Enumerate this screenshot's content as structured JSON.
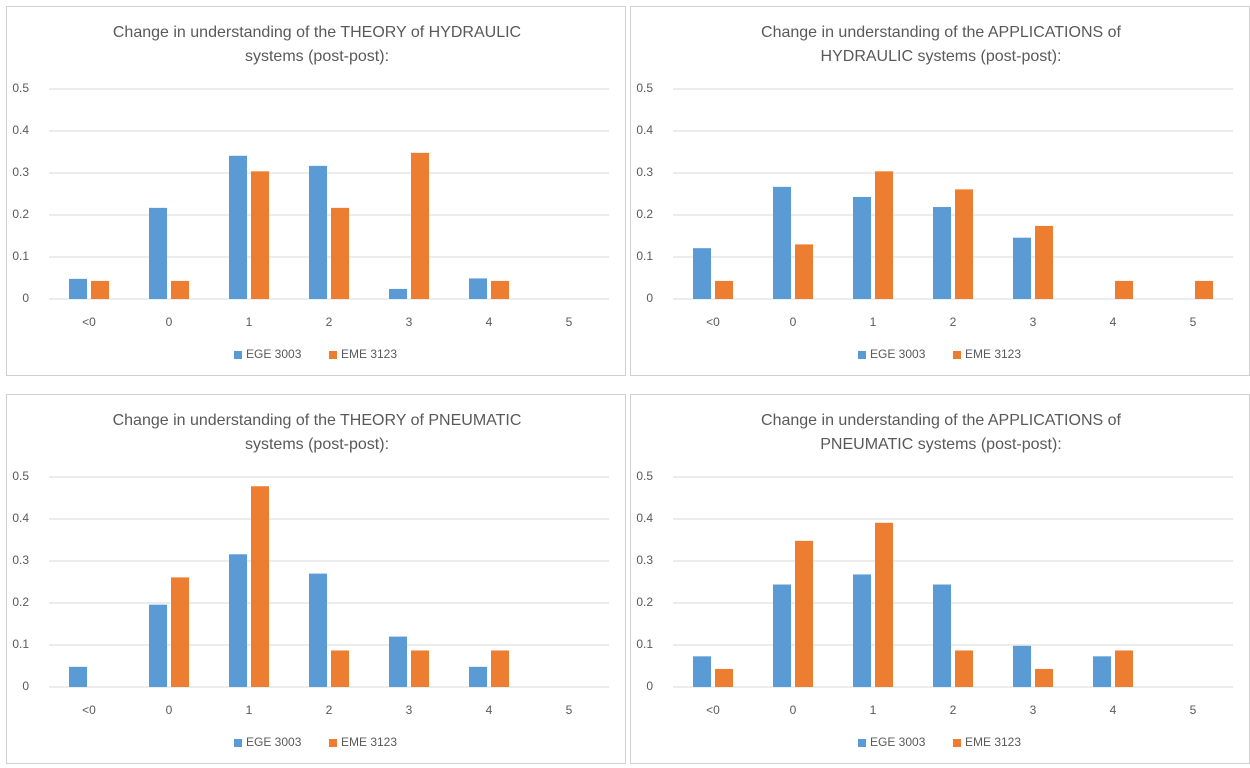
{
  "chart_data": [
    {
      "type": "bar",
      "title": "Change in understanding of the THEORY of HYDRAULIC systems (post-post):",
      "categories": [
        "<0",
        "0",
        "1",
        "2",
        "3",
        "4",
        "5"
      ],
      "series": [
        {
          "name": "EGE 3003",
          "color": "#5b9bd5",
          "values": [
            0.048,
            0.217,
            0.341,
            0.317,
            0.024,
            0.049,
            0
          ]
        },
        {
          "name": "EME 3123",
          "color": "#ed7d31",
          "values": [
            0.043,
            0.043,
            0.304,
            0.217,
            0.348,
            0.043,
            0
          ]
        }
      ],
      "ylim": [
        0,
        0.5
      ],
      "yticks": [
        0,
        0.1,
        0.2,
        0.3,
        0.4,
        0.5
      ],
      "grid": true
    },
    {
      "type": "bar",
      "title": "Change in understanding of the APPLICATIONS of HYDRAULIC systems (post-post):",
      "categories": [
        "<0",
        "0",
        "1",
        "2",
        "3",
        "4",
        "5"
      ],
      "series": [
        {
          "name": "EGE 3003",
          "color": "#5b9bd5",
          "values": [
            0.121,
            0.267,
            0.243,
            0.219,
            0.146,
            0,
            0
          ]
        },
        {
          "name": "EME 3123",
          "color": "#ed7d31",
          "values": [
            0.043,
            0.13,
            0.304,
            0.261,
            0.174,
            0.043,
            0.043
          ]
        }
      ],
      "ylim": [
        0,
        0.5
      ],
      "yticks": [
        0,
        0.1,
        0.2,
        0.3,
        0.4,
        0.5
      ],
      "grid": true
    },
    {
      "type": "bar",
      "title": "Change in understanding of the THEORY of PNEUMATIC systems (post-post):",
      "categories": [
        "<0",
        "0",
        "1",
        "2",
        "3",
        "4",
        "5"
      ],
      "series": [
        {
          "name": "EGE 3003",
          "color": "#5b9bd5",
          "values": [
            0.048,
            0.196,
            0.316,
            0.27,
            0.12,
            0.048,
            0
          ]
        },
        {
          "name": "EME 3123",
          "color": "#ed7d31",
          "values": [
            0,
            0.261,
            0.478,
            0.087,
            0.087,
            0.087,
            0
          ]
        }
      ],
      "ylim": [
        0,
        0.5
      ],
      "yticks": [
        0,
        0.1,
        0.2,
        0.3,
        0.4,
        0.5
      ],
      "grid": true
    },
    {
      "type": "bar",
      "title": "Change in understanding of the APPLICATIONS of PNEUMATIC systems (post-post):",
      "categories": [
        "<0",
        "0",
        "1",
        "2",
        "3",
        "4",
        "5"
      ],
      "series": [
        {
          "name": "EGE 3003",
          "color": "#5b9bd5",
          "values": [
            0.073,
            0.244,
            0.268,
            0.244,
            0.098,
            0.073,
            0
          ]
        },
        {
          "name": "EME 3123",
          "color": "#ed7d31",
          "values": [
            0.043,
            0.348,
            0.391,
            0.087,
            0.043,
            0.087,
            0
          ]
        }
      ],
      "ylim": [
        0,
        0.5
      ],
      "yticks": [
        0,
        0.1,
        0.2,
        0.3,
        0.4,
        0.5
      ],
      "grid": true
    }
  ]
}
